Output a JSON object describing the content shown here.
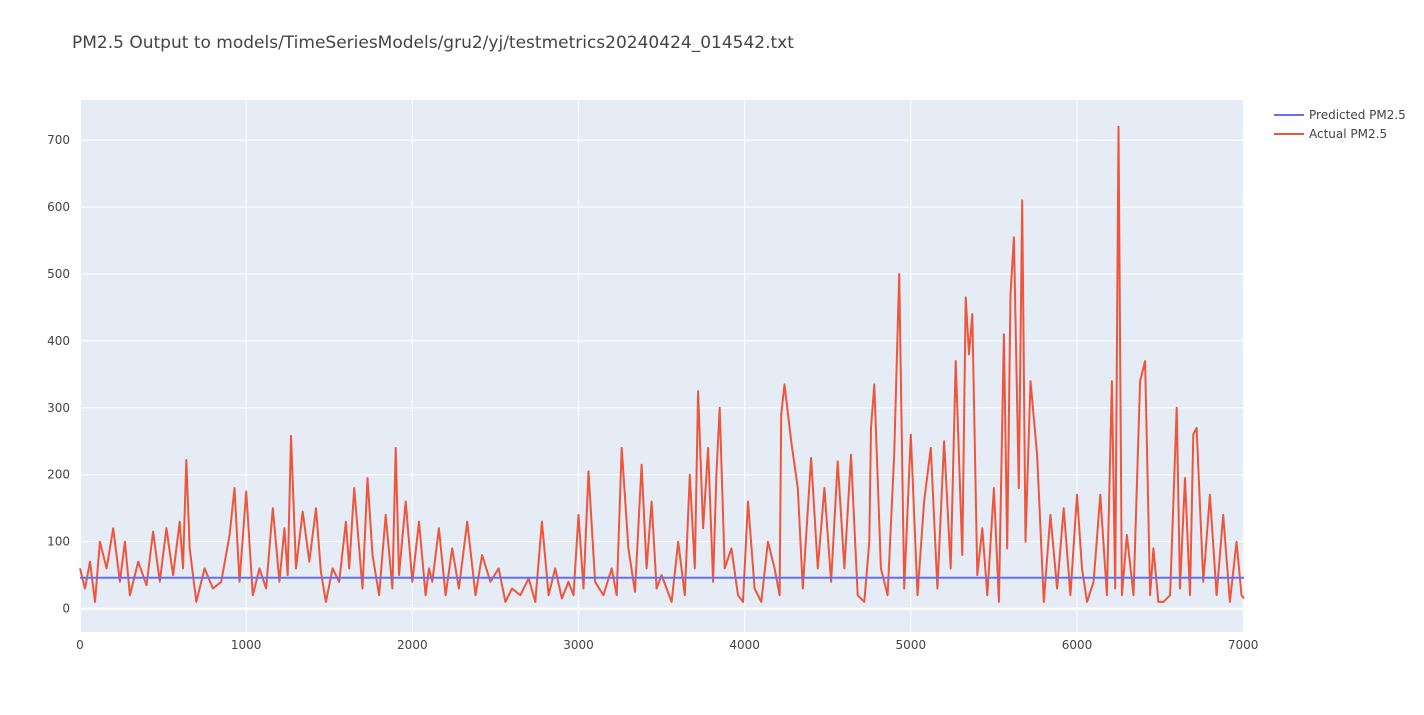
{
  "chart_data": {
    "type": "line",
    "title": "PM2.5 Output to models/TimeSeriesModels/gru2/yj/testmetrics20240424_014542.txt",
    "xlabel": "",
    "ylabel": "",
    "xlim": [
      0,
      7005
    ],
    "ylim": [
      -35,
      760
    ],
    "xticks": [
      0,
      1000,
      2000,
      3000,
      4000,
      5000,
      6000,
      7000
    ],
    "yticks": [
      0,
      100,
      200,
      300,
      400,
      500,
      600,
      700
    ],
    "grid": true,
    "legend_position": "top-right",
    "series": [
      {
        "name": "Predicted PM2.5",
        "color": "#636efa",
        "x": [
          0,
          7005
        ],
        "y": [
          46,
          46
        ]
      },
      {
        "name": "Actual PM2.5",
        "color": "#ef553b",
        "x": [
          0,
          30,
          60,
          90,
          120,
          160,
          200,
          240,
          270,
          300,
          350,
          400,
          440,
          480,
          520,
          560,
          600,
          620,
          640,
          660,
          700,
          750,
          800,
          850,
          900,
          930,
          960,
          1000,
          1040,
          1080,
          1120,
          1160,
          1200,
          1230,
          1250,
          1270,
          1300,
          1340,
          1380,
          1420,
          1450,
          1480,
          1520,
          1560,
          1600,
          1620,
          1650,
          1700,
          1730,
          1760,
          1800,
          1840,
          1880,
          1900,
          1920,
          1960,
          2000,
          2040,
          2080,
          2100,
          2120,
          2160,
          2200,
          2240,
          2280,
          2330,
          2380,
          2420,
          2470,
          2520,
          2560,
          2600,
          2650,
          2700,
          2740,
          2780,
          2820,
          2860,
          2900,
          2940,
          2970,
          3000,
          3030,
          3060,
          3100,
          3150,
          3200,
          3230,
          3260,
          3300,
          3340,
          3380,
          3410,
          3440,
          3470,
          3500,
          3560,
          3600,
          3640,
          3670,
          3700,
          3720,
          3750,
          3780,
          3810,
          3830,
          3850,
          3880,
          3920,
          3960,
          3990,
          4020,
          4060,
          4100,
          4140,
          4180,
          4210,
          4220,
          4240,
          4280,
          4320,
          4350,
          4400,
          4440,
          4480,
          4520,
          4560,
          4600,
          4640,
          4680,
          4720,
          4750,
          4760,
          4780,
          4820,
          4860,
          4900,
          4930,
          4960,
          5000,
          5040,
          5080,
          5120,
          5160,
          5200,
          5240,
          5270,
          5310,
          5330,
          5350,
          5370,
          5400,
          5430,
          5460,
          5500,
          5530,
          5560,
          5580,
          5600,
          5620,
          5650,
          5670,
          5690,
          5720,
          5760,
          5800,
          5840,
          5880,
          5920,
          5960,
          6000,
          6030,
          6060,
          6100,
          6140,
          6180,
          6210,
          6230,
          6250,
          6270,
          6300,
          6340,
          6380,
          6410,
          6440,
          6460,
          6490,
          6520,
          6560,
          6600,
          6620,
          6650,
          6680,
          6700,
          6720,
          6760,
          6800,
          6840,
          6880,
          6920,
          6960,
          6990,
          7005
        ],
        "y": [
          60,
          30,
          70,
          10,
          100,
          60,
          120,
          40,
          100,
          20,
          70,
          35,
          115,
          40,
          120,
          50,
          130,
          60,
          222,
          90,
          10,
          60,
          30,
          40,
          110,
          180,
          40,
          175,
          20,
          60,
          30,
          150,
          40,
          120,
          50,
          258,
          60,
          145,
          70,
          150,
          55,
          10,
          60,
          40,
          130,
          60,
          180,
          30,
          195,
          80,
          20,
          140,
          30,
          240,
          50,
          160,
          40,
          130,
          20,
          60,
          40,
          120,
          20,
          90,
          30,
          130,
          20,
          80,
          40,
          60,
          10,
          30,
          20,
          45,
          10,
          130,
          20,
          60,
          15,
          40,
          20,
          140,
          30,
          205,
          40,
          20,
          60,
          20,
          240,
          90,
          25,
          215,
          60,
          160,
          30,
          50,
          10,
          100,
          20,
          200,
          60,
          325,
          120,
          240,
          40,
          200,
          300,
          60,
          90,
          20,
          10,
          160,
          30,
          10,
          100,
          60,
          20,
          290,
          335,
          250,
          180,
          30,
          225,
          60,
          180,
          40,
          220,
          60,
          230,
          20,
          10,
          100,
          270,
          335,
          60,
          20,
          230,
          500,
          30,
          260,
          20,
          160,
          240,
          30,
          250,
          60,
          370,
          80,
          465,
          380,
          440,
          50,
          120,
          20,
          180,
          10,
          410,
          90,
          470,
          555,
          180,
          610,
          100,
          340,
          230,
          10,
          140,
          30,
          150,
          20,
          170,
          60,
          10,
          40,
          170,
          20,
          340,
          30,
          720,
          20,
          110,
          20,
          340,
          370,
          20,
          90,
          10,
          10,
          20,
          300,
          30,
          195,
          20,
          260,
          270,
          40,
          170,
          20,
          140,
          10,
          100,
          20,
          15
        ]
      }
    ]
  }
}
